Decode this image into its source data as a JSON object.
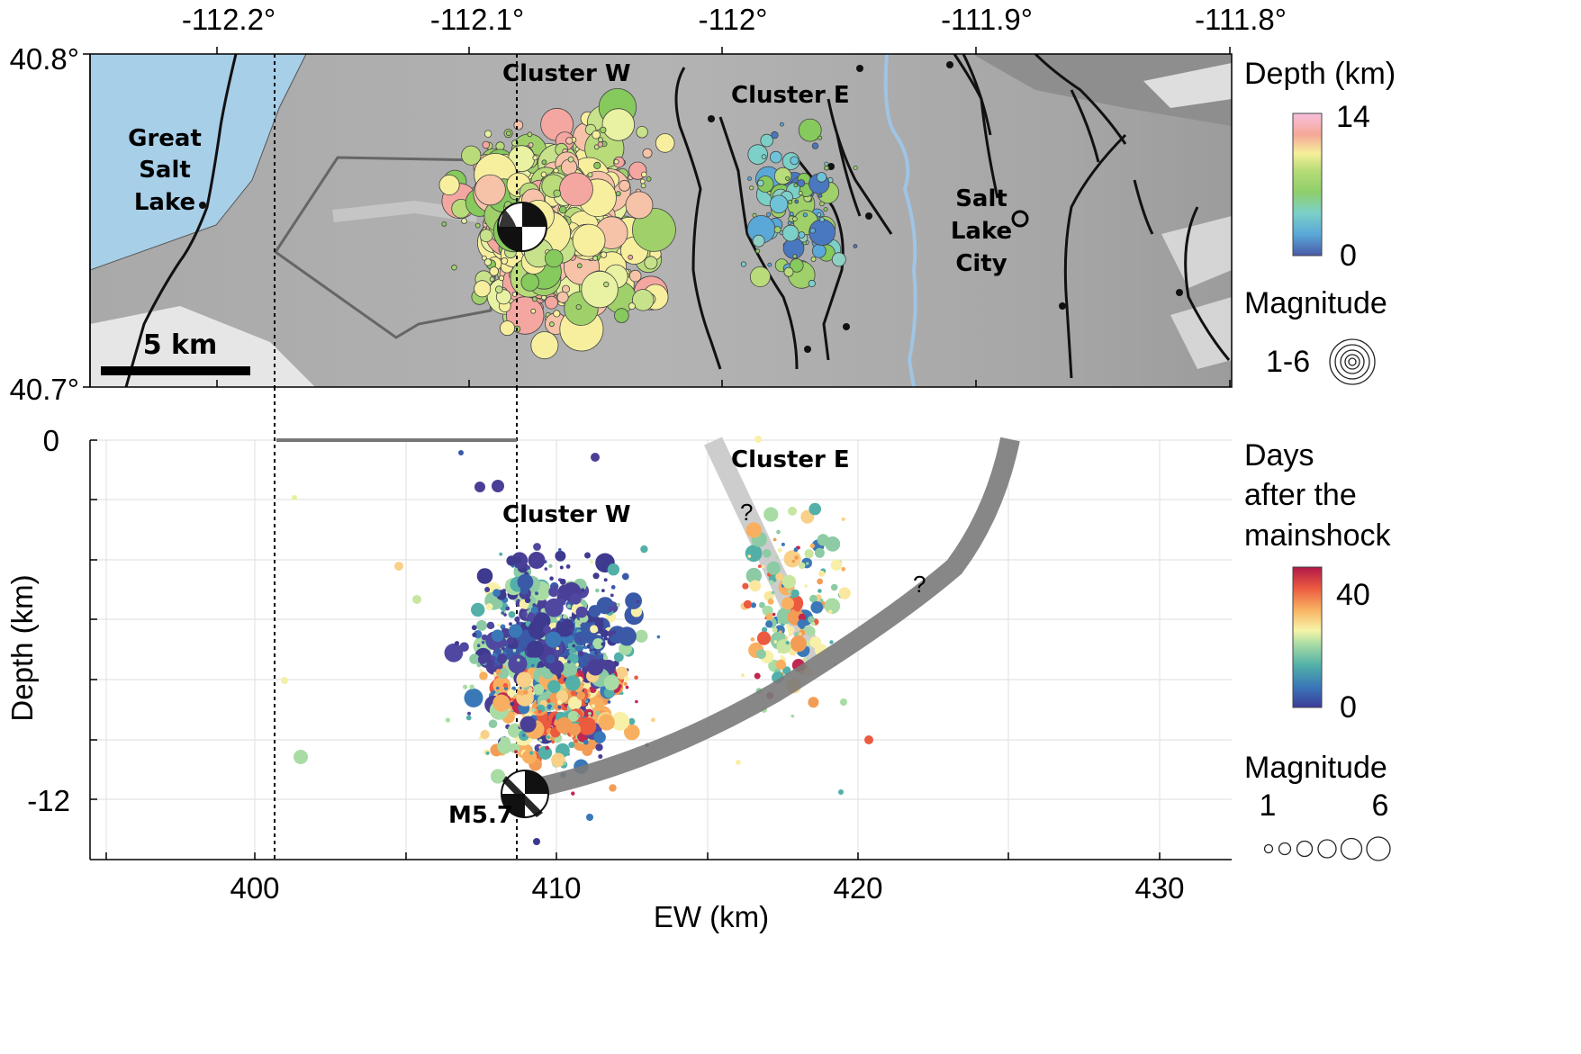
{
  "map": {
    "lon_ticks": [
      "-112.2°",
      "-112.1°",
      "-112°",
      "-111.9°",
      "-111.8°"
    ],
    "lat_ticks": [
      "40.8°",
      "40.7°"
    ],
    "labels": {
      "cluster_w": "Cluster W",
      "cluster_e": "Cluster E",
      "great_salt_lake": [
        "Great",
        "Salt",
        "Lake"
      ],
      "slc": [
        "Salt",
        "Lake",
        "City"
      ],
      "scale_bar": "5 km"
    },
    "legend": {
      "depth_title": "Depth (km)",
      "depth_max": "14",
      "depth_min": "0",
      "magnitude_title": "Magnitude",
      "magnitude_range": "1-6"
    },
    "colors": {
      "lake": "#a8cfe8",
      "terrain": "#b4b4b4",
      "river": "#9fc4e4",
      "faults": "#111111"
    }
  },
  "section": {
    "chart_data": {
      "type": "scatter",
      "xlabel": "EW (km)",
      "ylabel": "Depth (km)",
      "x_ticks": [
        "400",
        "410",
        "420",
        "430"
      ],
      "y_ticks": [
        "0",
        "-12"
      ],
      "xlim": [
        395,
        433
      ],
      "ylim": [
        -14,
        0
      ],
      "grid": true,
      "mainshock": {
        "label": "M5.7",
        "x": 409.2,
        "depth": -11.9
      },
      "annotations": {
        "cluster_w": "Cluster W",
        "cluster_e": "Cluster E",
        "question": "?"
      },
      "colorbar": {
        "title": [
          "Days",
          "after the",
          "mainshock"
        ],
        "max": "40",
        "min": "0"
      },
      "size_legend": {
        "title": "Magnitude",
        "min": "1",
        "max": "6"
      }
    }
  }
}
